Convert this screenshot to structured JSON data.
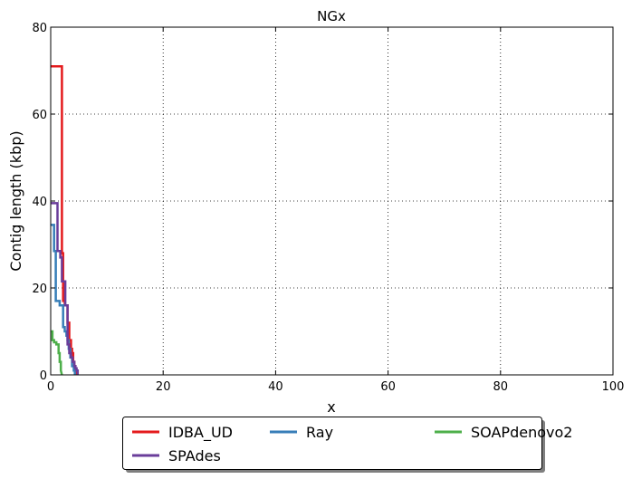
{
  "chart_data": {
    "type": "line",
    "title": "NGx",
    "xlabel": "x",
    "ylabel": "Contig length  (kbp)",
    "xlim": [
      0,
      100
    ],
    "ylim": [
      0,
      80
    ],
    "xticks": [
      0,
      20,
      40,
      60,
      80,
      100
    ],
    "yticks": [
      0,
      20,
      40,
      60,
      80
    ],
    "grid": true,
    "legend_position": "bottom-center",
    "series": [
      {
        "name": "IDBA_UD",
        "color": "#e41a1c",
        "x": [
          0,
          2.0,
          2.0,
          2.2,
          2.2,
          2.5,
          2.5,
          3.0,
          3.0,
          3.3,
          3.3,
          3.6,
          3.6,
          3.8,
          3.8,
          4.0,
          4.0,
          4.2,
          4.2,
          4.4,
          4.4,
          4.5,
          4.5
        ],
        "y": [
          71,
          71,
          28,
          28,
          17,
          17,
          16,
          16,
          12,
          12,
          8,
          8,
          6,
          6,
          5,
          5,
          3,
          3,
          2,
          2,
          1,
          1,
          0
        ]
      },
      {
        "name": "Ray",
        "color": "#377eb8",
        "x": [
          0,
          0.6,
          0.6,
          0.9,
          0.9,
          1.6,
          1.6,
          2.2,
          2.2,
          2.5,
          2.5,
          2.8,
          2.8,
          3.0,
          3.0,
          3.2,
          3.2,
          3.5,
          3.5,
          3.8,
          3.8,
          4.1,
          4.1,
          4.3,
          4.3
        ],
        "y": [
          34.5,
          34.5,
          28.5,
          28.5,
          17,
          17,
          16,
          16,
          11,
          11,
          10,
          10,
          9,
          9,
          8,
          8,
          6,
          6,
          4,
          4,
          2,
          2,
          1,
          1,
          0
        ]
      },
      {
        "name": "SOAPdenovo2",
        "color": "#4daf4a",
        "x": [
          0,
          0.3,
          0.3,
          0.6,
          0.6,
          1.0,
          1.0,
          1.4,
          1.4,
          1.6,
          1.6,
          1.8,
          1.8,
          2.0
        ],
        "y": [
          10,
          10,
          8,
          8,
          7.5,
          7.5,
          7,
          7,
          5,
          5,
          3,
          3,
          1,
          0
        ]
      },
      {
        "name": "SPAdes",
        "color": "#6a3d9a",
        "x": [
          0,
          0.6,
          0.6,
          1.2,
          1.2,
          1.7,
          1.7,
          2.0,
          2.0,
          2.4,
          2.4,
          2.6,
          2.6,
          3.0,
          3.0,
          3.3,
          3.3,
          3.6,
          3.6,
          3.9,
          3.9,
          4.2,
          4.2,
          4.4,
          4.4,
          4.6,
          4.6,
          4.8,
          4.8
        ],
        "y": [
          39.5,
          39.5,
          39.5,
          39.5,
          28.5,
          28.5,
          27,
          27,
          21.5,
          21.5,
          21.5,
          21.5,
          16,
          16,
          7,
          7,
          5,
          5,
          4,
          4,
          3,
          3,
          2,
          2,
          1.5,
          1.5,
          1,
          1,
          0
        ]
      }
    ]
  }
}
